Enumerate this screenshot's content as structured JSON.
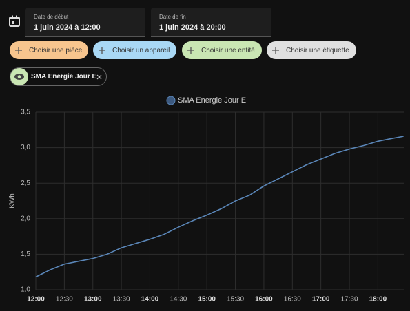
{
  "date_start": {
    "label": "Date de début",
    "value": "1 juin 2024 à 12:00"
  },
  "date_end": {
    "label": "Date de fin",
    "value": "1 juin 2024 à 20:00"
  },
  "chips": [
    "Choisir une pièce",
    "Choisir un appareil",
    "Choisir une entité",
    "Choisir une étiquette"
  ],
  "selected": "SMA Energie Jour E",
  "chart_data": {
    "type": "line",
    "ylabel": "KWh",
    "x": [
      "12:00",
      "12:15",
      "12:30",
      "12:45",
      "13:00",
      "13:15",
      "13:30",
      "13:45",
      "14:00",
      "14:15",
      "14:30",
      "14:45",
      "15:00",
      "15:15",
      "15:30",
      "15:45",
      "16:00",
      "16:15",
      "16:30",
      "16:45",
      "17:00",
      "17:15",
      "17:30",
      "17:45",
      "18:00",
      "18:15",
      "18:27"
    ],
    "series": [
      {
        "name": "SMA Energie Jour E",
        "color": "#5a86b8",
        "values": [
          1.18,
          1.28,
          1.36,
          1.4,
          1.44,
          1.5,
          1.59,
          1.65,
          1.71,
          1.78,
          1.88,
          1.97,
          2.05,
          2.14,
          2.25,
          2.33,
          2.46,
          2.56,
          2.66,
          2.76,
          2.84,
          2.92,
          2.98,
          3.03,
          3.09,
          3.13,
          3.16
        ]
      }
    ],
    "xlim": [
      "12:00",
      "18:28"
    ],
    "xticks": [
      "12:00",
      "12:30",
      "13:00",
      "13:30",
      "14:00",
      "14:30",
      "15:00",
      "15:30",
      "16:00",
      "16:30",
      "17:00",
      "17:30",
      "18:00"
    ],
    "ylim": [
      1,
      3.5
    ],
    "yticks": [
      {
        "value": 1,
        "label": "1,0"
      },
      {
        "value": 1.5,
        "label": "1,5"
      },
      {
        "value": 2,
        "label": "2,0"
      },
      {
        "value": 2.5,
        "label": "2,5"
      },
      {
        "value": 3,
        "label": "3,0"
      },
      {
        "value": 3.5,
        "label": "3,5"
      }
    ],
    "grid": true
  }
}
